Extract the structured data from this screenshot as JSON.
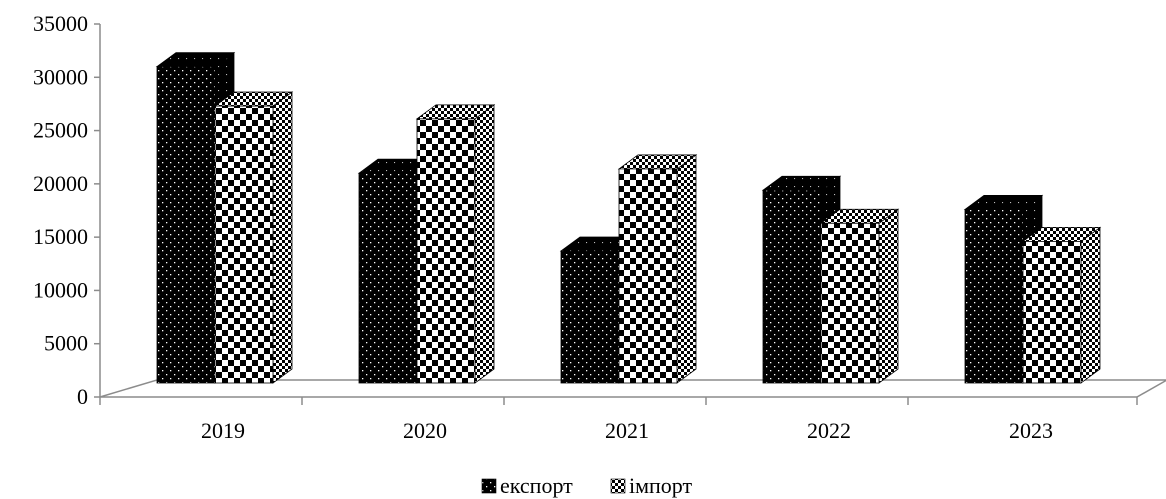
{
  "chart_data": {
    "type": "bar",
    "categories": [
      "2019",
      "2020",
      "2021",
      "2022",
      "2023"
    ],
    "series": [
      {
        "name": "експорт",
        "values": [
          31000,
          21000,
          13700,
          19400,
          17600
        ],
        "pattern": "dots-on-black",
        "color": "#000000"
      },
      {
        "name": "імпорт",
        "values": [
          27300,
          26100,
          21400,
          16300,
          14600
        ],
        "pattern": "checkerboard",
        "color": "#000000"
      }
    ],
    "title": "",
    "xlabel": "",
    "ylabel": "",
    "ylim": [
      0,
      35000
    ],
    "yticks": [
      "0",
      "5000",
      "10000",
      "15000",
      "20000",
      "25000",
      "30000",
      "35000"
    ],
    "grid": false,
    "legend": "bottom-center",
    "style": "3d-column"
  }
}
